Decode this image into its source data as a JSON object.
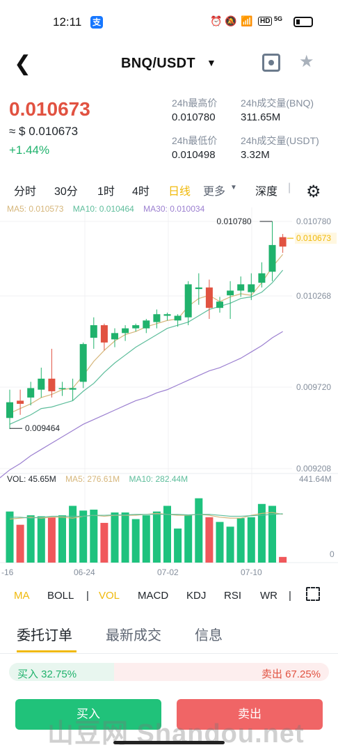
{
  "status": {
    "time": "12:11",
    "app_badge": "支",
    "icons": [
      "alarm-icon",
      "mute-icon",
      "wifi-icon",
      "hd-icon",
      "signal-5g-icon",
      "battery-icon"
    ],
    "hd": "HD",
    "net": "5G"
  },
  "nav": {
    "pair": "BNQ/USDT"
  },
  "ticker": {
    "price": "0.010673",
    "fiat": "≈ $ 0.010673",
    "change": "+1.44%",
    "high_label": "24h最高价",
    "high": "0.010780",
    "low_label": "24h最低价",
    "low": "0.010498",
    "vol_base_label": "24h成交量(BNQ)",
    "vol_base": "311.65M",
    "vol_quote_label": "24h成交量(USDT)",
    "vol_quote": "3.32M"
  },
  "intervals": {
    "i1": "分时",
    "i2": "30分",
    "i3": "1时",
    "i4": "4时",
    "i5": "日线",
    "more": "更多",
    "depth": "深度"
  },
  "ma_legend": {
    "ma5": "MA5: 0.010573",
    "ma10": "MA10: 0.010464",
    "ma30": "MA30: 0.010034"
  },
  "vol_legend": {
    "vol": "VOL: 45.65M",
    "ma5": "MA5: 276.61M",
    "ma10": "MA10: 282.44M"
  },
  "colors": {
    "up": "#20b26c",
    "down": "#e15241",
    "ma5": "#d6b67a",
    "ma10": "#5dbd9b",
    "ma30": "#9b7fd0",
    "accent": "#f0b90b"
  },
  "chart_data": {
    "type": "candlestick",
    "y_ticks": [
      "0.010780",
      "0.010268",
      "0.009720",
      "0.009208"
    ],
    "last_price_label": "0.010673",
    "max_label": "0.010780",
    "min_label": "0.009464",
    "x_ticks": [
      "-16",
      "06-24",
      "07-02",
      "07-10"
    ],
    "vol_ticks": [
      "441.64M",
      "0"
    ],
    "candles": [
      {
        "o": 0.00953,
        "c": 0.00963,
        "h": 0.00971,
        "l": 0.00946
      },
      {
        "o": 0.00964,
        "c": 0.00962,
        "h": 0.00971,
        "l": 0.00955
      },
      {
        "o": 0.00966,
        "c": 0.00972,
        "h": 0.00976,
        "l": 0.00961
      },
      {
        "o": 0.00971,
        "c": 0.00978,
        "h": 0.00985,
        "l": 0.00966
      },
      {
        "o": 0.00978,
        "c": 0.0097,
        "h": 0.00997,
        "l": 0.00966
      },
      {
        "o": 0.00972,
        "c": 0.00972,
        "h": 0.00976,
        "l": 0.00967
      },
      {
        "o": 0.00971,
        "c": 0.00972,
        "h": 0.00978,
        "l": 0.00964
      },
      {
        "o": 0.00976,
        "c": 0.01,
        "h": 0.01001,
        "l": 0.00972
      },
      {
        "o": 0.01004,
        "c": 0.01012,
        "h": 0.01017,
        "l": 0.00997
      },
      {
        "o": 0.01012,
        "c": 0.01001,
        "h": 0.01013,
        "l": 0.00996
      },
      {
        "o": 0.01003,
        "c": 0.01007,
        "h": 0.0101,
        "l": 0.00998
      },
      {
        "o": 0.01007,
        "c": 0.0101,
        "h": 0.01012,
        "l": 0.01002
      },
      {
        "o": 0.0101,
        "c": 0.01012,
        "h": 0.01013,
        "l": 0.01008
      },
      {
        "o": 0.0101,
        "c": 0.01015,
        "h": 0.01016,
        "l": 0.01007
      },
      {
        "o": 0.01014,
        "c": 0.01019,
        "h": 0.01022,
        "l": 0.0101
      },
      {
        "o": 0.01018,
        "c": 0.01019,
        "h": 0.0102,
        "l": 0.01015
      },
      {
        "o": 0.01015,
        "c": 0.01018,
        "h": 0.01019,
        "l": 0.01011
      },
      {
        "o": 0.01017,
        "c": 0.01038,
        "h": 0.0104,
        "l": 0.01012
      },
      {
        "o": 0.01035,
        "c": 0.01036,
        "h": 0.01045,
        "l": 0.01025
      },
      {
        "o": 0.01036,
        "c": 0.01023,
        "h": 0.01041,
        "l": 0.01016
      },
      {
        "o": 0.01023,
        "c": 0.01027,
        "h": 0.0103,
        "l": 0.0102
      },
      {
        "o": 0.01031,
        "c": 0.01034,
        "h": 0.0104,
        "l": 0.01016
      },
      {
        "o": 0.01034,
        "c": 0.01038,
        "h": 0.01043,
        "l": 0.0103
      },
      {
        "o": 0.01033,
        "c": 0.01038,
        "h": 0.01045,
        "l": 0.01028
      },
      {
        "o": 0.01039,
        "c": 0.01045,
        "h": 0.01052,
        "l": 0.01036
      },
      {
        "o": 0.01046,
        "c": 0.01063,
        "h": 0.01078,
        "l": 0.0104
      },
      {
        "o": 0.01068,
        "c": 0.01062,
        "h": 0.0107,
        "l": 0.01058
      }
    ],
    "volumes": [
      270,
      200,
      250,
      245,
      240,
      250,
      300,
      275,
      280,
      210,
      265,
      265,
      230,
      250,
      270,
      300,
      180,
      250,
      340,
      240,
      215,
      190,
      235,
      240,
      310,
      300,
      30
    ],
    "ma5": [
      0.00956,
      0.00959,
      0.00962,
      0.00966,
      0.00968,
      0.00971,
      0.00972,
      0.0098,
      0.00989,
      0.00996,
      0.01002,
      0.01006,
      0.01008,
      0.01011,
      0.01013,
      0.01015,
      0.01016,
      0.01024,
      0.01029,
      0.01031,
      0.01027,
      0.0103,
      0.01032,
      0.01031,
      0.01039,
      0.01049,
      0.01057
    ],
    "ma10": [
      0.00949,
      0.00952,
      0.00955,
      0.00959,
      0.0096,
      0.00962,
      0.00964,
      0.0097,
      0.00975,
      0.00982,
      0.00988,
      0.00993,
      0.00998,
      0.01002,
      0.01006,
      0.0101,
      0.01012,
      0.01014,
      0.01018,
      0.01022,
      0.01024,
      0.01026,
      0.01029,
      0.0103,
      0.01033,
      0.01039,
      0.01047
    ],
    "ma30": [
      0.0092,
      0.00924,
      0.00929,
      0.00933,
      0.00937,
      0.00941,
      0.00945,
      0.00949,
      0.00952,
      0.00955,
      0.00958,
      0.00961,
      0.00964,
      0.00966,
      0.00969,
      0.00971,
      0.00974,
      0.00977,
      0.0098,
      0.00983,
      0.00985,
      0.00988,
      0.00991,
      0.00995,
      0.00999,
      0.01004,
      0.01008
    ],
    "vol_ma5": [
      230,
      235,
      240,
      235,
      240,
      240,
      235,
      245,
      250,
      245,
      250,
      250,
      250,
      255,
      260,
      255,
      250,
      250,
      255,
      250,
      240,
      235,
      235,
      250,
      260,
      265,
      255
    ],
    "vol_ma10": [
      240,
      240,
      235,
      240,
      245,
      245,
      245,
      245,
      250,
      250,
      252,
      252,
      255,
      255,
      255,
      255,
      255,
      252,
      255,
      255,
      250,
      245,
      245,
      248,
      250,
      255,
      258
    ]
  },
  "indicators": {
    "ma": "MA",
    "boll": "BOLL",
    "vol": "VOL",
    "macd": "MACD",
    "kdj": "KDJ",
    "rsi": "RSI",
    "wr": "WR"
  },
  "sections": {
    "orders": "委托订单",
    "trades": "最新成交",
    "info": "信息"
  },
  "ratio": {
    "buy_label": "买入 32.75%",
    "sell_label": "卖出 67.25%",
    "buy_pct": 32.75
  },
  "actions": {
    "buy": "买入",
    "sell": "卖出"
  },
  "watermark": "山豆网 Shandou.net"
}
